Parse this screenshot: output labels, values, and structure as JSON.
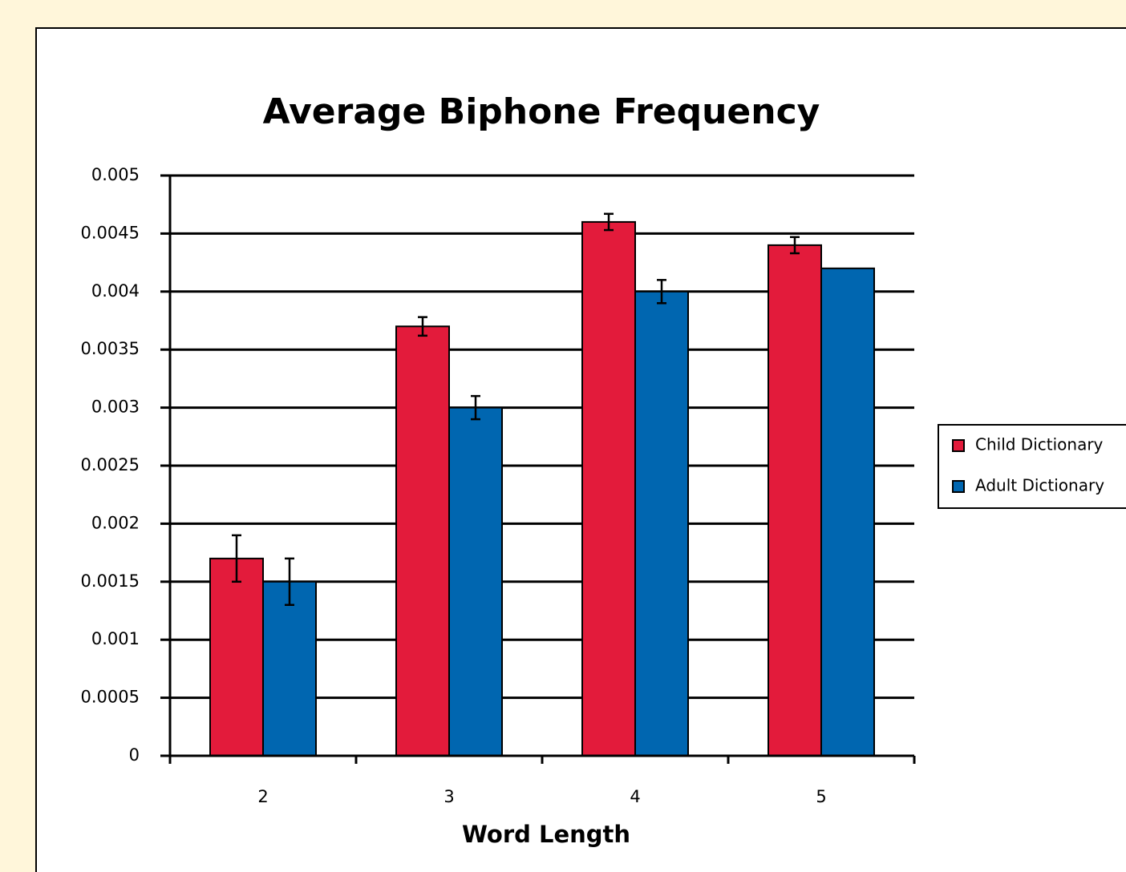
{
  "chart_data": {
    "type": "bar",
    "title": "Average Biphone Frequency",
    "x_label": "Word Length",
    "categories": [
      "2",
      "3",
      "4",
      "5"
    ],
    "series": [
      {
        "name": "Child Dictionary",
        "color": "#e31b3b",
        "values": [
          0.0017,
          0.0037,
          0.0046,
          0.0044
        ],
        "errors": [
          0.0002,
          8e-05,
          7e-05,
          7e-05
        ]
      },
      {
        "name": "Adult Dictionary",
        "color": "#0066b0",
        "values": [
          0.0015,
          0.003,
          0.004,
          0.0042
        ],
        "errors": [
          0.0002,
          0.0001,
          0.0001,
          null
        ]
      }
    ],
    "ylim": [
      0,
      0.005
    ],
    "yticks": [
      0,
      0.0005,
      0.001,
      0.0015,
      0.002,
      0.0025,
      0.003,
      0.0035,
      0.004,
      0.0045,
      0.005
    ],
    "grid": true,
    "legend": "right"
  }
}
